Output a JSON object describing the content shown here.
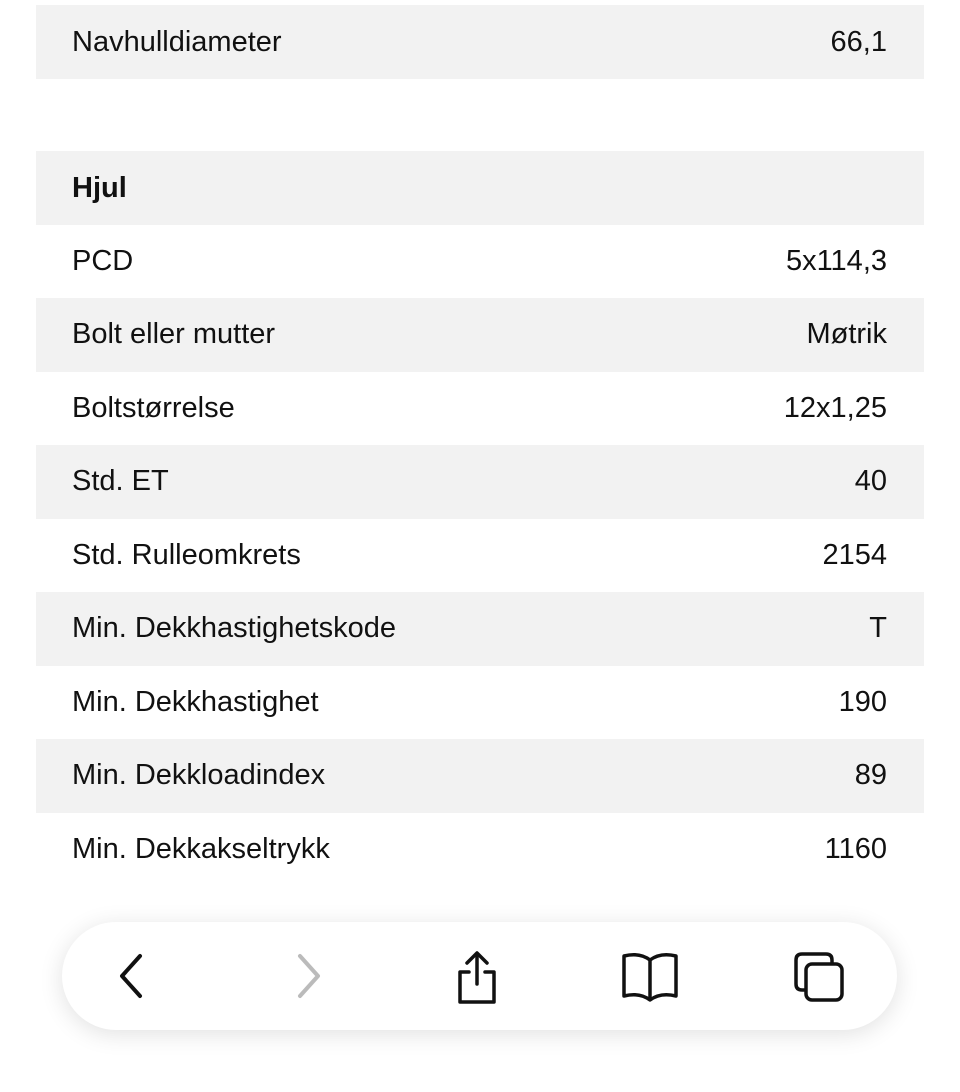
{
  "top_row": {
    "label": "Navhulldiameter",
    "value": "66,1"
  },
  "section": {
    "title": "Hjul",
    "rows": [
      [
        "PCD",
        "5x114,3"
      ],
      [
        "Bolt eller mutter",
        "Møtrik"
      ],
      [
        "Boltstørrelse",
        "12x1,25"
      ],
      [
        "Std. ET",
        "40"
      ],
      [
        "Std. Rulleomkrets",
        "2154"
      ],
      [
        "Min. Dekkhastighetskode",
        "T"
      ],
      [
        "Min. Dekkhastighet",
        "190"
      ],
      [
        "Min. Dekkloadindex",
        "89"
      ],
      [
        "Min. Dekkakseltrykk",
        "1160"
      ]
    ]
  }
}
